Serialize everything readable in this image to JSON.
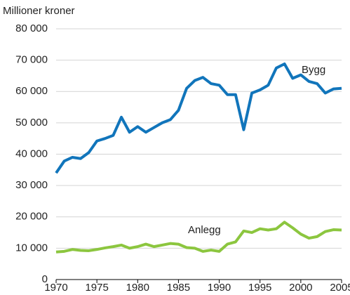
{
  "chart_data": {
    "type": "line",
    "y_label": "Millioner kroner",
    "x": [
      1970,
      1971,
      1972,
      1973,
      1974,
      1975,
      1976,
      1977,
      1978,
      1979,
      1980,
      1981,
      1982,
      1983,
      1984,
      1985,
      1986,
      1987,
      1988,
      1989,
      1990,
      1991,
      1992,
      1993,
      1994,
      1995,
      1996,
      1997,
      1998,
      1999,
      2000,
      2001,
      2002,
      2003,
      2004,
      2005
    ],
    "series": [
      {
        "name": "Bygg",
        "color": "#1175bb",
        "values": [
          34000,
          37800,
          39000,
          38600,
          40500,
          44200,
          45000,
          46000,
          51800,
          47000,
          48800,
          47000,
          48500,
          50000,
          51000,
          54000,
          61000,
          63500,
          64500,
          62500,
          62000,
          59000,
          59000,
          47800,
          59500,
          60500,
          62000,
          67500,
          68800,
          64200,
          65300,
          63200,
          62500,
          59500,
          60800,
          61000
        ]
      },
      {
        "name": "Anlegg",
        "color": "#8cc63f",
        "values": [
          8800,
          9000,
          9600,
          9300,
          9200,
          9600,
          10100,
          10500,
          11000,
          10000,
          10500,
          11300,
          10500,
          11000,
          11500,
          11300,
          10200,
          10000,
          9000,
          9400,
          9000,
          11300,
          12000,
          15500,
          15000,
          16200,
          15800,
          16200,
          18300,
          16500,
          14500,
          13200,
          13700,
          15300,
          15900,
          15800
        ]
      }
    ],
    "xlim": [
      1970,
      2005
    ],
    "xticks": [
      1970,
      1975,
      1980,
      1985,
      1990,
      1995,
      2000,
      2005
    ],
    "ylim": [
      0,
      80000
    ],
    "yticks": [
      0,
      {
        "value": 10000,
        "label": "10 000"
      },
      {
        "value": 20000,
        "label": "20 000"
      },
      {
        "value": 30000,
        "label": "30 000"
      },
      {
        "value": 40000,
        "label": "40 000"
      },
      {
        "value": 50000,
        "label": "50 000"
      },
      {
        "value": 60000,
        "label": "60 000"
      },
      {
        "value": 70000,
        "label": "70 000"
      },
      {
        "value": 80000,
        "label": "80 000"
      }
    ],
    "grid": true
  }
}
